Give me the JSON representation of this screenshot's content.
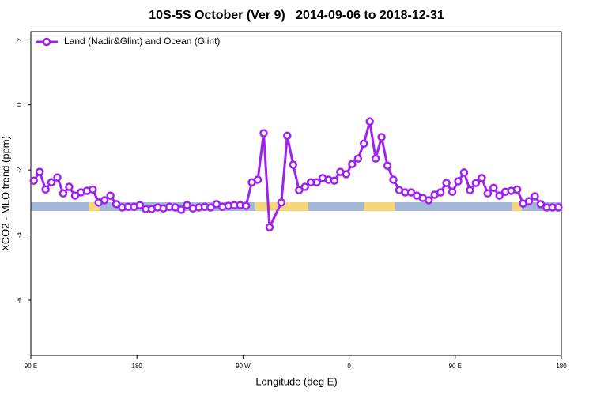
{
  "chart_data": {
    "type": "line",
    "title": "10S-5S October (Ver 9)   2014-09-06 to 2018-12-31",
    "x_label": "Longitude (deg E)",
    "y_label": "XCO2 - MLO trend (ppm)",
    "x": [
      92.5,
      97.5,
      102.5,
      107.5,
      112.5,
      117.5,
      122.5,
      127.5,
      132.5,
      137.5,
      142.5,
      147.5,
      152.5,
      157.5,
      162.5,
      167.5,
      172.5,
      177.5,
      182.5,
      187.5,
      192.5,
      197.5,
      202.5,
      207.5,
      212.5,
      217.5,
      222.5,
      227.5,
      232.5,
      237.5,
      242.5,
      247.5,
      252.5,
      257.5,
      262.5,
      267.5,
      272.5,
      277.5,
      282.5,
      287.5,
      292.5,
      302.5,
      307.5,
      312.5,
      317.5,
      322.5,
      327.5,
      332.5,
      337.5,
      342.5,
      347.5,
      352.5,
      357.5,
      362.5,
      367.5,
      372.5,
      377.5,
      382.5,
      387.5,
      392.5,
      397.5,
      402.5,
      407.5,
      412.5,
      417.5,
      422.5,
      427.5,
      432.5,
      437.5,
      442.5,
      447.5,
      452.5,
      457.5,
      462.5,
      467.5,
      472.5,
      477.5,
      482.5,
      487.5,
      492.5,
      497.5,
      502.5,
      507.5,
      512.5,
      517.5,
      522.5,
      527.5,
      532.5,
      537.5
    ],
    "series": [
      {
        "name": "Land (Nadir&Glint) and Ocean (Glint)",
        "color": "#a020f0",
        "values": [
          -2.33,
          -2.06,
          -2.6,
          -2.38,
          -2.23,
          -2.72,
          -2.52,
          -2.79,
          -2.69,
          -2.64,
          -2.6,
          -3.0,
          -2.93,
          -2.79,
          -3.05,
          -3.15,
          -3.13,
          -3.13,
          -3.08,
          -3.2,
          -3.2,
          -3.15,
          -3.18,
          -3.13,
          -3.15,
          -3.22,
          -3.08,
          -3.18,
          -3.15,
          -3.13,
          -3.15,
          -3.05,
          -3.13,
          -3.1,
          -3.08,
          -3.08,
          -3.1,
          -2.38,
          -2.3,
          -0.87,
          -3.76,
          -3.0,
          -0.95,
          -1.84,
          -2.62,
          -2.52,
          -2.38,
          -2.38,
          -2.25,
          -2.3,
          -2.33,
          -2.06,
          -2.13,
          -1.82,
          -1.65,
          -1.19,
          -0.51,
          -1.65,
          -0.99,
          -1.87,
          -2.3,
          -2.62,
          -2.69,
          -2.69,
          -2.79,
          -2.86,
          -2.93,
          -2.76,
          -2.69,
          -2.4,
          -2.67,
          -2.35,
          -2.08,
          -2.62,
          -2.4,
          -2.25,
          -2.72,
          -2.55,
          -2.79,
          -2.67,
          -2.64,
          -2.6,
          -3.03,
          -2.96,
          -2.81,
          -3.05,
          -3.15,
          -3.15,
          -3.15
        ]
      }
    ],
    "xlim": [
      90,
      540
    ],
    "ylim": [
      -7.7,
      2.25
    ],
    "xticks": [
      {
        "value": 90,
        "label": "90 E"
      },
      {
        "value": 180,
        "label": "180"
      },
      {
        "value": 270,
        "label": "90 W"
      },
      {
        "value": 360,
        "label": "0"
      },
      {
        "value": 450,
        "label": "90 E"
      },
      {
        "value": 540,
        "label": "180"
      }
    ],
    "yticks": [
      2,
      0,
      -2,
      -4,
      -6
    ],
    "legend": "top-left"
  }
}
